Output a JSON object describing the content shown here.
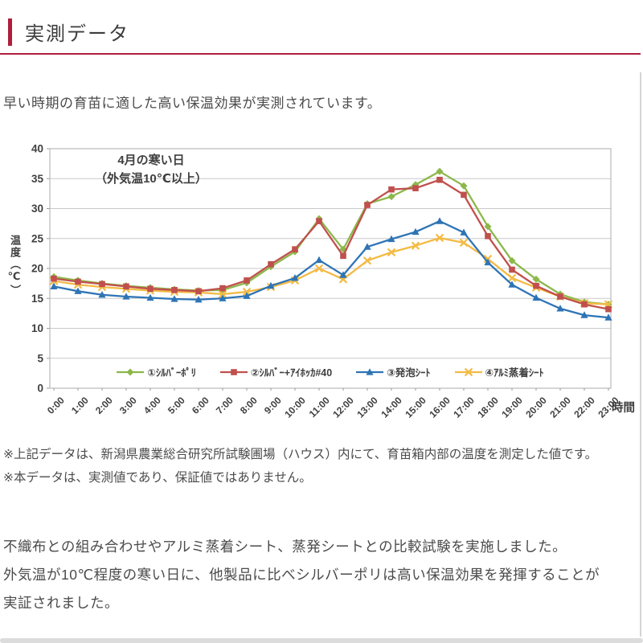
{
  "page": {
    "accent_color": "#b01e3c",
    "header": {
      "title": "実測データ"
    },
    "intro": "早い時期の育苗に適した高い保温効果が実測されています。",
    "notes": [
      "※上記データは、新潟県農業総合研究所試験圃場（ハウス）内にて、育苗箱内部の温度を測定した値です。",
      "※本データは、実測値であり、保証値ではありません。"
    ],
    "paragraph": [
      "不織布との組み合わせやアルミ蒸着シート、蒸発シートとの比較試験を実施しました。",
      "外気温が10℃程度の寒い日に、他製品に比べシルバーポリは高い保温効果を発揮することが",
      "実証されました。"
    ]
  },
  "chart_data": {
    "type": "line",
    "title_lines": [
      "4月の寒い日",
      "（外気温10℃以上）"
    ],
    "xlabel": "時間",
    "ylabel": "温度（℃）",
    "ylim": [
      0,
      40
    ],
    "ytick_step": 5,
    "grid": true,
    "legend_position": "bottom",
    "axis_text_color": "#3f3f3f",
    "grid_color": "#c9c9c9",
    "x": [
      "0:00",
      "1:00",
      "2:00",
      "3:00",
      "4:00",
      "5:00",
      "6:00",
      "7:00",
      "8:00",
      "9:00",
      "10:00",
      "11:00",
      "12:00",
      "13:00",
      "14:00",
      "15:00",
      "16:00",
      "17:00",
      "18:00",
      "19:00",
      "20:00",
      "21:00",
      "22:00",
      "23:00"
    ],
    "series": [
      {
        "name": "①ｼﾙﾊﾞｰﾎﾟﾘ",
        "color": "#8cb84b",
        "marker": "diamond",
        "values": [
          18.6,
          18.0,
          17.5,
          17.1,
          16.8,
          16.5,
          16.3,
          16.4,
          17.6,
          20.3,
          22.8,
          28.3,
          23.2,
          30.8,
          32.0,
          34.0,
          36.2,
          33.8,
          27.0,
          21.3,
          18.2,
          15.7,
          14.4,
          14.0
        ]
      },
      {
        "name": "②ｼﾙﾊﾞｰ+ｱｲﾎｯｶ#40",
        "color": "#c0504d",
        "marker": "square",
        "values": [
          18.3,
          17.8,
          17.4,
          17.0,
          16.6,
          16.4,
          16.2,
          16.7,
          18.0,
          20.7,
          23.2,
          27.9,
          22.1,
          30.6,
          33.2,
          33.4,
          34.8,
          32.3,
          25.4,
          19.8,
          17.1,
          15.3,
          14.0,
          13.2
        ]
      },
      {
        "name": "③発泡ｼｰﾄ",
        "color": "#2e74b5",
        "marker": "triangle",
        "values": [
          17.0,
          16.2,
          15.6,
          15.3,
          15.1,
          14.9,
          14.8,
          15.0,
          15.4,
          17.1,
          18.4,
          21.4,
          18.9,
          23.6,
          24.9,
          26.1,
          27.9,
          26.0,
          21.0,
          17.3,
          15.1,
          13.3,
          12.2,
          11.8
        ]
      },
      {
        "name": "④ｱﾙﾐ蒸着ｼｰﾄ",
        "color": "#f3ba45",
        "marker": "x",
        "values": [
          17.9,
          17.3,
          16.9,
          16.6,
          16.3,
          16.1,
          16.0,
          15.7,
          16.1,
          16.9,
          18.0,
          20.0,
          18.2,
          21.3,
          22.7,
          23.8,
          25.1,
          24.3,
          21.6,
          18.4,
          16.8,
          15.3,
          14.2,
          14.0
        ]
      }
    ]
  }
}
